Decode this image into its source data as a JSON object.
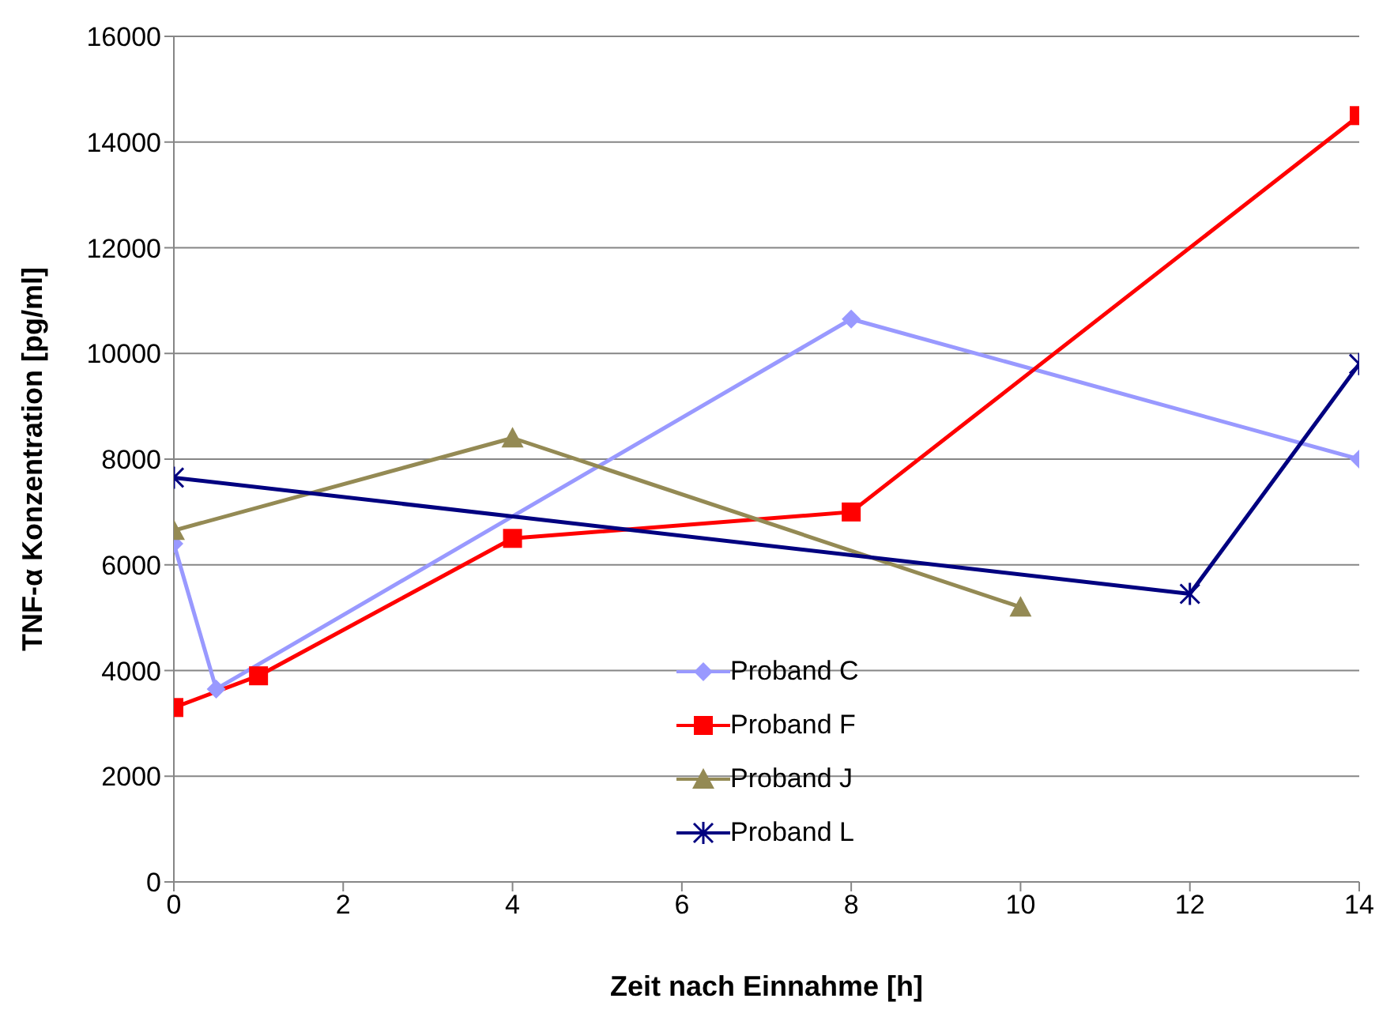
{
  "chart_data": {
    "type": "line",
    "xlabel": "Zeit nach Einnahme [h]",
    "ylabel": "TNF-α Konzentration [pg/ml]",
    "xlim": [
      0,
      14
    ],
    "xticks": [
      0,
      2,
      4,
      6,
      8,
      10,
      12,
      14
    ],
    "ylim": [
      0,
      16000
    ],
    "yticks": [
      0,
      2000,
      4000,
      6000,
      8000,
      10000,
      12000,
      14000,
      16000
    ],
    "grid": "y",
    "legend": "bottom",
    "line_style": "solid",
    "series": [
      {
        "name": "Proband C",
        "color": "#9999ff",
        "marker": "diamond",
        "x": [
          0,
          0.5,
          8,
          14
        ],
        "values": [
          6400,
          3650,
          10650,
          8000
        ]
      },
      {
        "name": "Proband F",
        "color": "#ff0000",
        "marker": "square",
        "x": [
          0,
          1,
          4,
          8,
          14
        ],
        "values": [
          3300,
          3900,
          6500,
          7000,
          14500
        ]
      },
      {
        "name": "Proband J",
        "color": "#948a54",
        "marker": "triangle",
        "x": [
          0,
          4,
          10
        ],
        "values": [
          6650,
          8400,
          5200
        ]
      },
      {
        "name": "Proband L",
        "color": "#000080",
        "marker": "cross",
        "x": [
          0,
          12,
          14
        ],
        "values": [
          7650,
          5450,
          9800
        ]
      }
    ]
  }
}
